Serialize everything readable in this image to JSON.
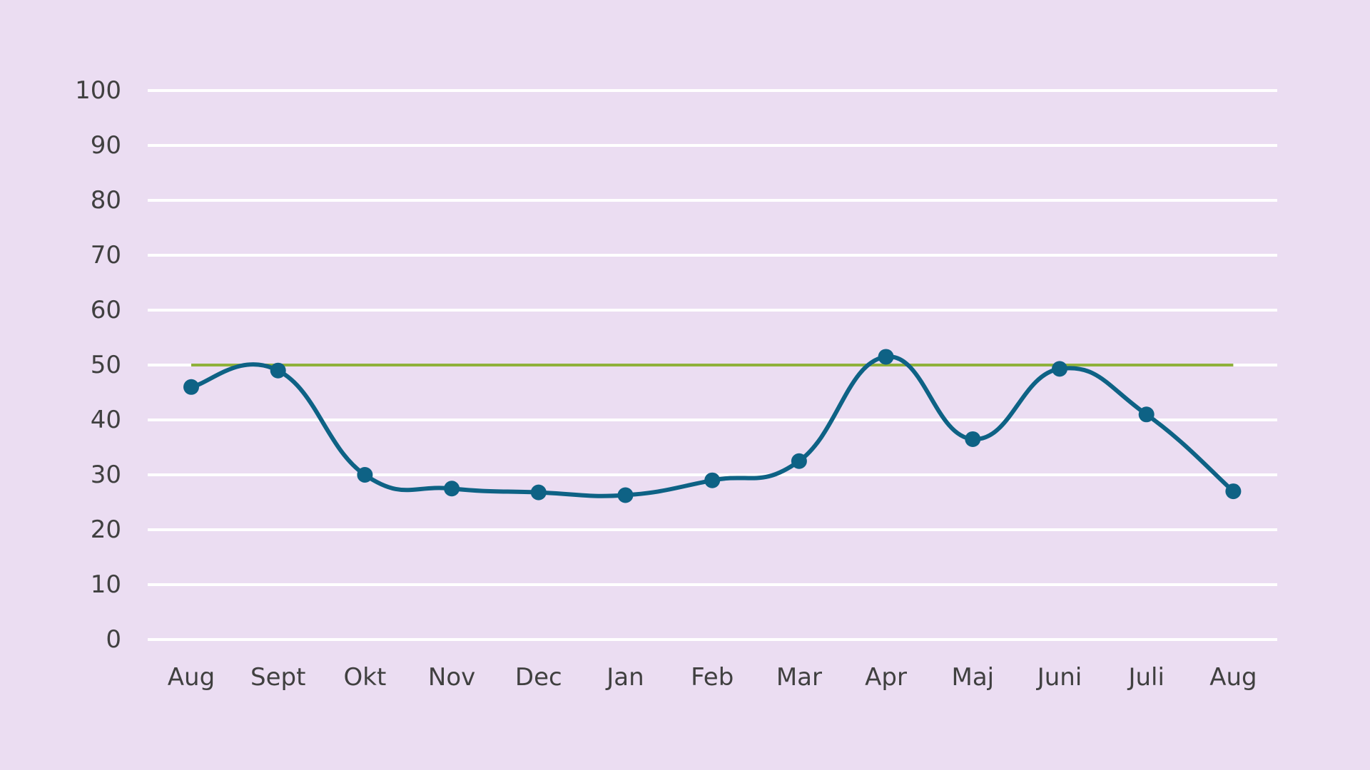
{
  "colors": {
    "background": "#ebddf2",
    "grid": "#ffffff",
    "series_line": "#0e6285",
    "reference_line": "#8fb13b",
    "tick_text": "#404040"
  },
  "chart_data": {
    "type": "line",
    "title": "",
    "xlabel": "",
    "ylabel": "",
    "categories": [
      "Aug",
      "Sept",
      "Okt",
      "Nov",
      "Dec",
      "Jan",
      "Feb",
      "Mar",
      "Apr",
      "Maj",
      "Juni",
      "Juli",
      "Aug"
    ],
    "ylim": [
      0,
      100
    ],
    "y_ticks": [
      "0",
      "10",
      "20",
      "30",
      "40",
      "50",
      "60",
      "70",
      "80",
      "90",
      "100"
    ],
    "grid": "horizontal",
    "legend": "none",
    "series": [
      {
        "values": [
          46,
          49,
          30,
          27.5,
          26.8,
          26.3,
          29,
          32.5,
          51.5,
          36.5,
          49.3,
          41,
          27
        ],
        "color": "#0e6285",
        "smooth": true,
        "markers": true
      },
      {
        "values": [
          50,
          50,
          50,
          50,
          50,
          50,
          50,
          50,
          50,
          50,
          50,
          50,
          50
        ],
        "color": "#8fb13b",
        "smooth": false,
        "markers": false
      }
    ]
  }
}
